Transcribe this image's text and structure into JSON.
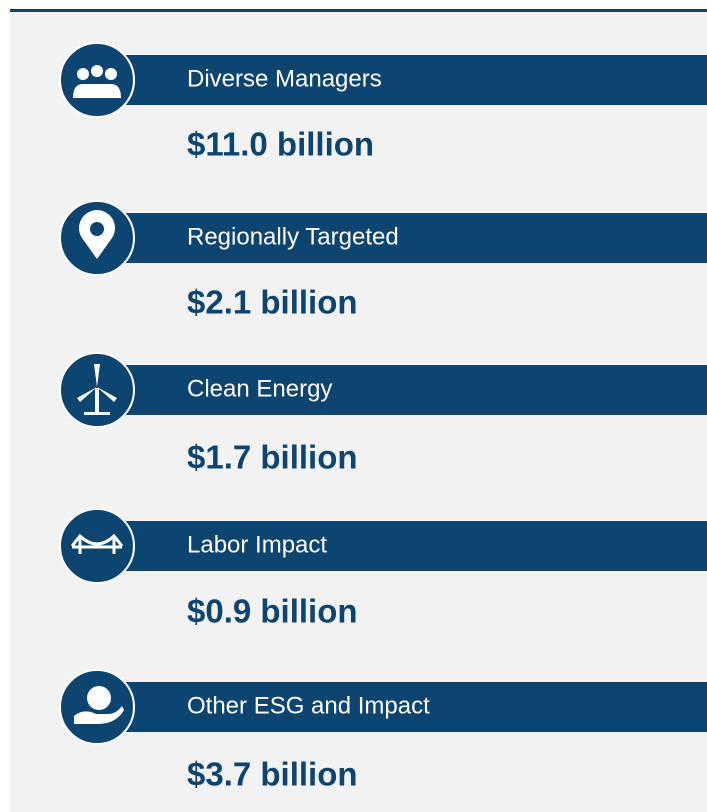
{
  "items": [
    {
      "label": "Diverse Managers",
      "amount": "$11.0 billion"
    },
    {
      "label": "Regionally Targeted",
      "amount": "$2.1 billion"
    },
    {
      "label": "Clean Energy",
      "amount": "$1.7 billion"
    },
    {
      "label": "Labor Impact",
      "amount": "$0.9 billion"
    },
    {
      "label": "Other ESG and Impact",
      "amount": "$3.7 billion"
    }
  ]
}
